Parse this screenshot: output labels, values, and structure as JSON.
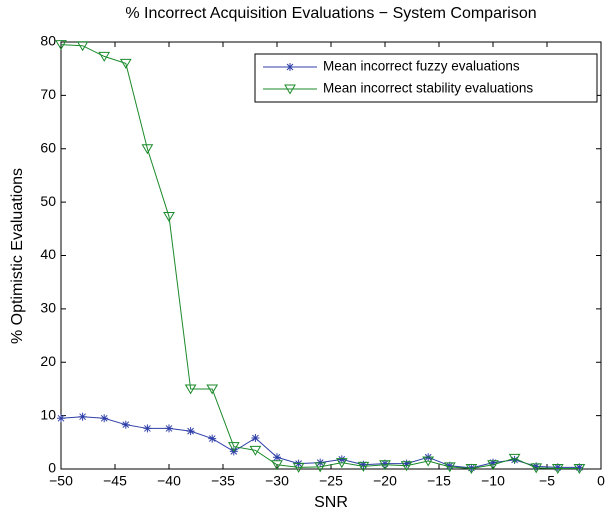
{
  "chart_data": {
    "type": "line",
    "title": "% Incorrect Acquisition Evaluations − System Comparison",
    "xlabel": "SNR",
    "ylabel": "% Optimistic Evaluations",
    "x": [
      -50,
      -48,
      -46,
      -44,
      -42,
      -40,
      -38,
      -36,
      -34,
      -32,
      -30,
      -28,
      -26,
      -24,
      -22,
      -20,
      -18,
      -16,
      -14,
      -12,
      -10,
      -8,
      -6,
      -4,
      -2
    ],
    "series": [
      {
        "name": "Mean incorrect fuzzy evaluations",
        "color": "#2f3fa8",
        "marker": "asterisk",
        "values": [
          9.5,
          9.8,
          9.5,
          8.3,
          7.6,
          7.6,
          7.1,
          5.7,
          3.3,
          5.8,
          2.2,
          1.0,
          1.2,
          1.8,
          0.8,
          1.0,
          1.0,
          2.2,
          0.6,
          0.2,
          1.2,
          1.7,
          0.5,
          0.3,
          0.3
        ]
      },
      {
        "name": "Mean incorrect stability evaluations",
        "color": "#1a8a2a",
        "marker": "triangle-down",
        "values": [
          79.5,
          79.3,
          77.3,
          76.0,
          60,
          47.3,
          15,
          15,
          4.2,
          3.5,
          0.8,
          0.3,
          0.4,
          1.2,
          0.5,
          0.8,
          0.6,
          1.5,
          0.4,
          0.1,
          0.8,
          2.0,
          0.2,
          0.1,
          0.1
        ]
      }
    ],
    "xlim": [
      -50,
      0
    ],
    "ylim": [
      0,
      80
    ],
    "xticks": [
      {
        "value": -50,
        "label": "−50"
      },
      {
        "value": -45,
        "label": "−45"
      },
      {
        "value": -40,
        "label": "−40"
      },
      {
        "value": -35,
        "label": "−35"
      },
      {
        "value": -30,
        "label": "−30"
      },
      {
        "value": -25,
        "label": "−25"
      },
      {
        "value": -20,
        "label": "−20"
      },
      {
        "value": -15,
        "label": "−15"
      },
      {
        "value": -10,
        "label": "−10"
      },
      {
        "value": -5,
        "label": "−5"
      },
      0
    ],
    "yticks": [
      0,
      10,
      20,
      30,
      40,
      50,
      60,
      70,
      80
    ],
    "grid": false,
    "legend": "northeast"
  }
}
